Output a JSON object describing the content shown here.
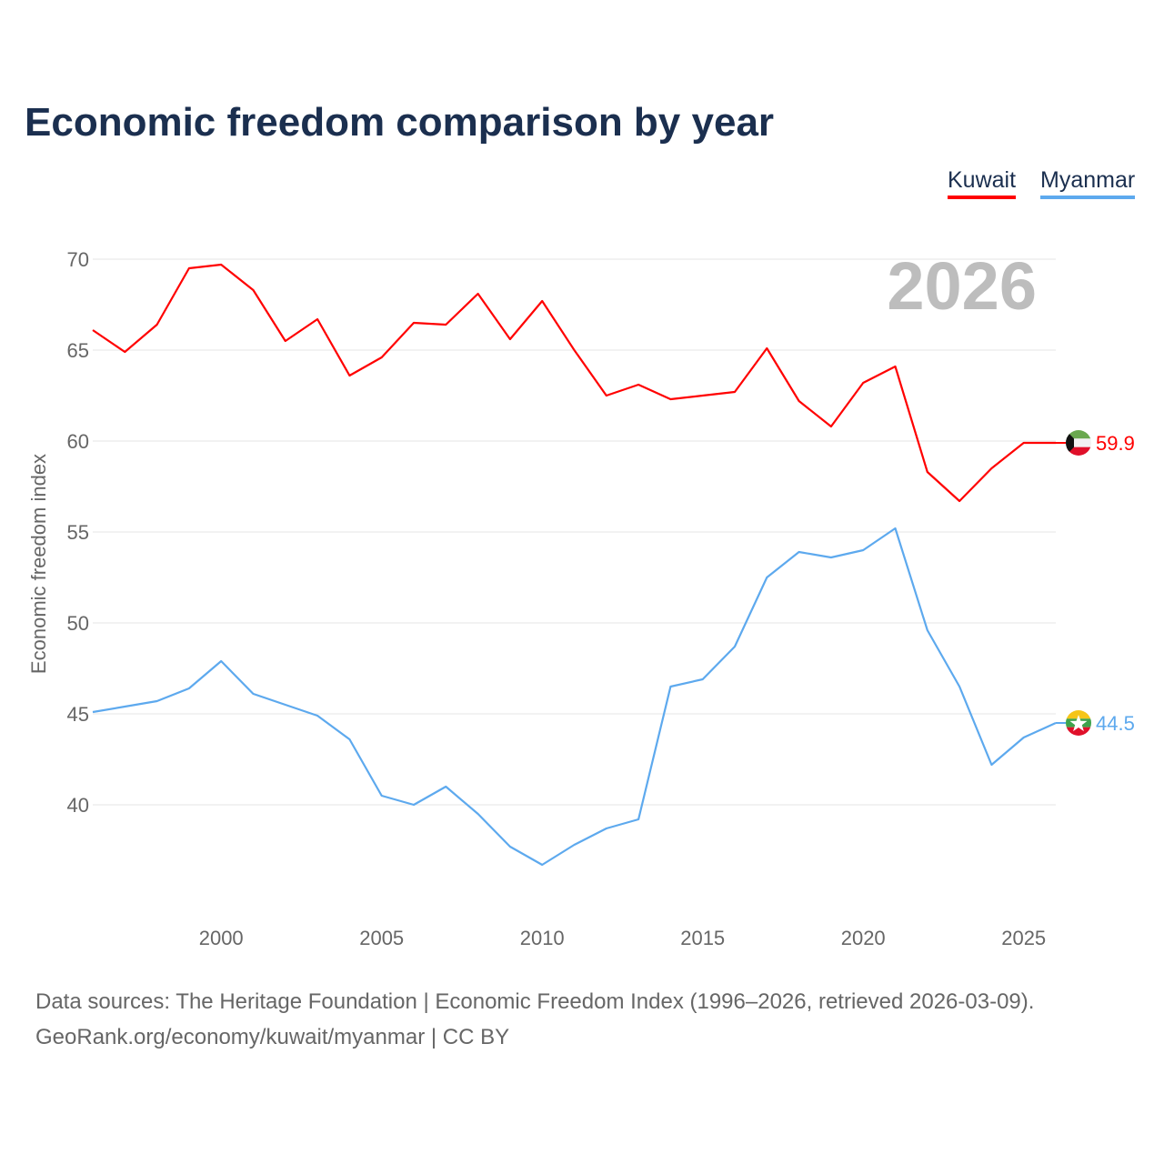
{
  "chart_data": {
    "type": "line",
    "title": "Economic freedom comparison by year",
    "ylabel": "Economic freedom index",
    "xlabel": "",
    "watermark_year": "2026",
    "xlim": [
      1996,
      2026
    ],
    "ylim": [
      33.75,
      71.25
    ],
    "xticks": [
      2000,
      2005,
      2010,
      2015,
      2020,
      2025
    ],
    "yticks": [
      40,
      45,
      50,
      55,
      60,
      65,
      70
    ],
    "grid": true,
    "legend_position": "top-right",
    "x": [
      1996,
      1997,
      1998,
      1999,
      2000,
      2001,
      2002,
      2003,
      2004,
      2005,
      2006,
      2007,
      2008,
      2009,
      2010,
      2011,
      2012,
      2013,
      2014,
      2015,
      2016,
      2017,
      2018,
      2019,
      2020,
      2021,
      2022,
      2023,
      2024,
      2025,
      2026
    ],
    "series": [
      {
        "name": "Kuwait",
        "color": "#ff0000",
        "end_label": "59.9",
        "values": [
          66.1,
          64.9,
          66.4,
          69.5,
          69.7,
          68.3,
          65.5,
          66.7,
          63.6,
          64.6,
          66.5,
          66.4,
          68.1,
          65.6,
          67.7,
          65.0,
          62.5,
          63.1,
          62.3,
          62.5,
          62.7,
          65.1,
          62.2,
          60.8,
          63.2,
          64.1,
          58.3,
          56.7,
          58.5,
          59.9,
          59.9
        ]
      },
      {
        "name": "Myanmar",
        "color": "#5da9ee",
        "end_label": "44.5",
        "values": [
          45.1,
          45.4,
          45.7,
          46.4,
          47.9,
          46.1,
          45.5,
          44.9,
          43.6,
          40.5,
          40.0,
          41.0,
          39.5,
          37.7,
          36.7,
          37.8,
          38.7,
          39.2,
          46.5,
          46.9,
          48.7,
          52.5,
          53.9,
          53.6,
          54.0,
          55.2,
          49.6,
          46.5,
          42.2,
          43.7,
          44.5
        ]
      }
    ]
  },
  "footer": {
    "line1": "Data sources: The Heritage Foundation | Economic Freedom Index (1996–2026, retrieved 2026-03-09).",
    "line2": "GeoRank.org/economy/kuwait/myanmar | CC BY"
  }
}
